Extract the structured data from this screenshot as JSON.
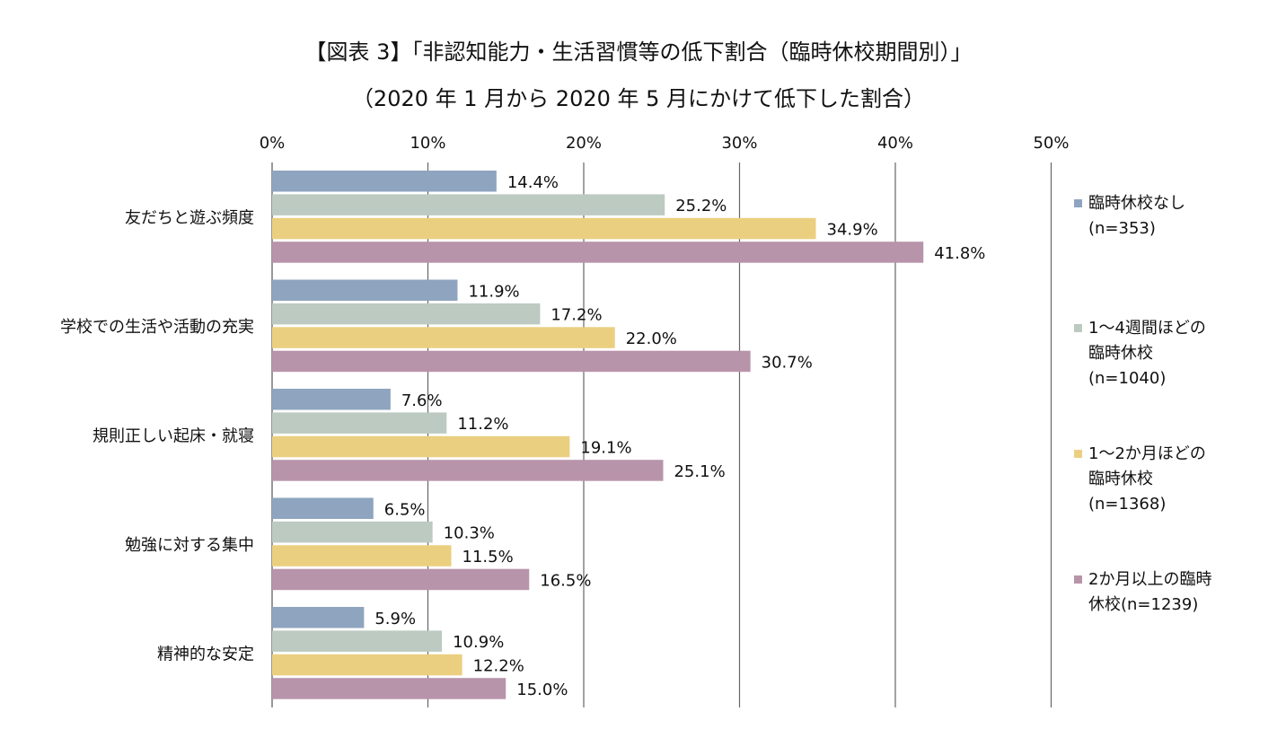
{
  "title": "【図表 3】「非認知能力・生活習慣等の低下割合（臨時休校期間別）」",
  "subtitle": "（2020 年 1 月から 2020 年 5 月にかけて低下した割合）",
  "colors": [
    "#8ea4bf",
    "#bccac2",
    "#ebcf80",
    "#b894ab"
  ],
  "legend": [
    {
      "label": "臨時休校なし\n(n=353)"
    },
    {
      "label": "1～4週間ほどの\n臨時休校\n(n=1040)"
    },
    {
      "label": "1～2か月ほどの\n臨時休校\n(n=1368)"
    },
    {
      "label": "2か月以上の臨時\n休校(n=1239)"
    }
  ],
  "chart_data": {
    "type": "bar",
    "orientation": "horizontal",
    "title": "【図表 3】「非認知能力・生活習慣等の低下割合（臨時休校期間別）」",
    "subtitle": "（2020 年 1 月から 2020 年 5 月にかけて低下した割合）",
    "categories": [
      "友だちと遊ぶ頻度",
      "学校での生活や活動の充実",
      "規則正しい起床・就寝",
      "勉強に対する集中",
      "精神的な安定"
    ],
    "series": [
      {
        "name": "臨時休校なし(n=353)",
        "values": [
          14.4,
          11.9,
          7.6,
          6.5,
          5.9
        ]
      },
      {
        "name": "1～4週間ほどの臨時休校(n=1040)",
        "values": [
          25.2,
          17.2,
          11.2,
          10.3,
          10.9
        ]
      },
      {
        "name": "1～2か月ほどの臨時休校(n=1368)",
        "values": [
          34.9,
          22.0,
          19.1,
          11.5,
          12.2
        ]
      },
      {
        "name": "2か月以上の臨時休校(n=1239)",
        "values": [
          41.8,
          30.7,
          25.1,
          16.5,
          15.0
        ]
      }
    ],
    "data_labels": [
      [
        "14.4%",
        "11.9%",
        "7.6%",
        "6.5%",
        "5.9%"
      ],
      [
        "25.2%",
        "17.2%",
        "11.2%",
        "10.3%",
        "10.9%"
      ],
      [
        "34.9%",
        "22.0%",
        "19.1%",
        "11.5%",
        "12.2%"
      ],
      [
        "41.8%",
        "30.7%",
        "25.1%",
        "16.5%",
        "15.0%"
      ]
    ],
    "xlim": [
      0,
      50
    ],
    "xticks": [
      0,
      10,
      20,
      30,
      40,
      50
    ],
    "xtick_labels": [
      "0%",
      "10%",
      "20%",
      "30%",
      "40%",
      "50%"
    ],
    "xaxis_position": "top",
    "grid": true,
    "legend_position": "right"
  }
}
